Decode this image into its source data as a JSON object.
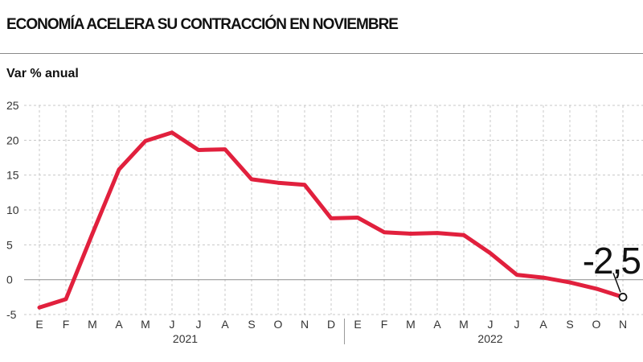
{
  "header": {
    "title": "ECONOMÍA ACELERA SU CONTRACCIÓN EN NOVIEMBRE",
    "ylabel": "Var % anual"
  },
  "chart_data": {
    "type": "line",
    "title": "ECONOMÍA ACELERA SU CONTRACCIÓN EN NOVIEMBRE",
    "ylabel": "Var % anual",
    "xlabel": "",
    "ylim": [
      -5,
      25
    ],
    "yticks": [
      25,
      20,
      15,
      10,
      5,
      0,
      -5
    ],
    "grid": true,
    "legend": "none",
    "line_color": "#e1203d",
    "categories": [
      "E",
      "F",
      "M",
      "A",
      "M",
      "J",
      "J",
      "A",
      "S",
      "O",
      "N",
      "D",
      "E",
      "F",
      "M",
      "A",
      "M",
      "J",
      "J",
      "A",
      "S",
      "O",
      "N"
    ],
    "years": [
      {
        "label": "2021",
        "start": 0,
        "end": 11
      },
      {
        "label": "2022",
        "start": 12,
        "end": 22
      }
    ],
    "series": [
      {
        "values": [
          -4.0,
          -2.8,
          6.6,
          15.8,
          19.9,
          21.1,
          18.6,
          18.7,
          14.4,
          13.9,
          13.6,
          8.8,
          8.9,
          6.8,
          6.6,
          6.7,
          6.4,
          3.8,
          0.7,
          0.3,
          -0.4,
          -1.3,
          -2.5
        ]
      }
    ],
    "annotation": {
      "text": "-2,5",
      "index": 22
    }
  }
}
